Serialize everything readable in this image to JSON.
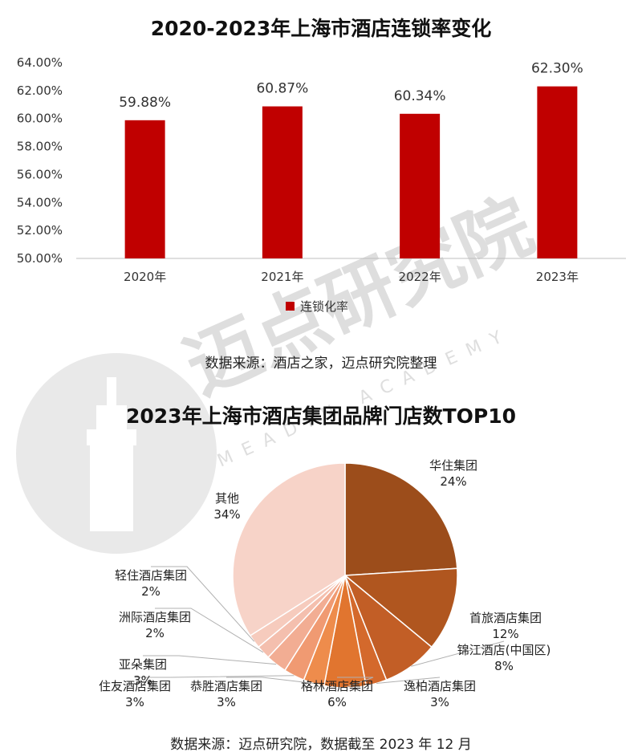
{
  "watermark": {
    "cn": "迈点研究院",
    "en": "MEADIN ACADEMY"
  },
  "bar_section": {
    "source": "数据来源：酒店之家，迈点研究院整理"
  },
  "pie_section": {
    "source": "数据来源：迈点研究院，数据截至 2023 年 12 月"
  },
  "chart_data": [
    {
      "type": "bar",
      "title": "2020-2023年上海市酒店连锁率变化",
      "categories": [
        "2020年",
        "2021年",
        "2022年",
        "2023年"
      ],
      "series": [
        {
          "name": "连锁化率",
          "values": [
            59.88,
            60.87,
            60.34,
            62.3
          ],
          "labels": [
            "59.88%",
            "60.87%",
            "60.34%",
            "62.30%"
          ],
          "color": "#c00000"
        }
      ],
      "ylim": [
        50,
        64
      ],
      "yticks": [
        50,
        52,
        54,
        56,
        58,
        60,
        62,
        64
      ],
      "ytick_labels": [
        "50.00%",
        "52.00%",
        "54.00%",
        "56.00%",
        "58.00%",
        "60.00%",
        "62.00%",
        "64.00%"
      ],
      "legend": "bottom",
      "grid": false
    },
    {
      "type": "pie",
      "title": "2023年上海市酒店集团品牌门店数TOP10",
      "slices": [
        {
          "name": "华住集团",
          "value": 24,
          "label": "24%",
          "color": "#9c4d1b"
        },
        {
          "name": "首旅酒店集团",
          "value": 12,
          "label": "12%",
          "color": "#b0561f"
        },
        {
          "name": "锦江酒店(中国区)",
          "value": 8,
          "label": "8%",
          "color": "#c25e26"
        },
        {
          "name": "逸柏酒店集团",
          "value": 3,
          "label": "3%",
          "color": "#d4692c"
        },
        {
          "name": "格林酒店集团",
          "value": 6,
          "label": "6%",
          "color": "#e1752f"
        },
        {
          "name": "恭胜酒店集团",
          "value": 3,
          "label": "3%",
          "color": "#ee8c4c"
        },
        {
          "name": "住友酒店集团",
          "value": 3,
          "label": "3%",
          "color": "#f09a72"
        },
        {
          "name": "亚朵集团",
          "value": 3,
          "label": "3%",
          "color": "#f2ad93"
        },
        {
          "name": "洲际酒店集团",
          "value": 2,
          "label": "2%",
          "color": "#f4bfae"
        },
        {
          "name": "轻住酒店集团",
          "value": 2,
          "label": "2%",
          "color": "#f6cbbd"
        },
        {
          "name": "其他",
          "value": 34,
          "label": "34%",
          "color": "#f7d3c8"
        }
      ],
      "legend": "none"
    }
  ]
}
